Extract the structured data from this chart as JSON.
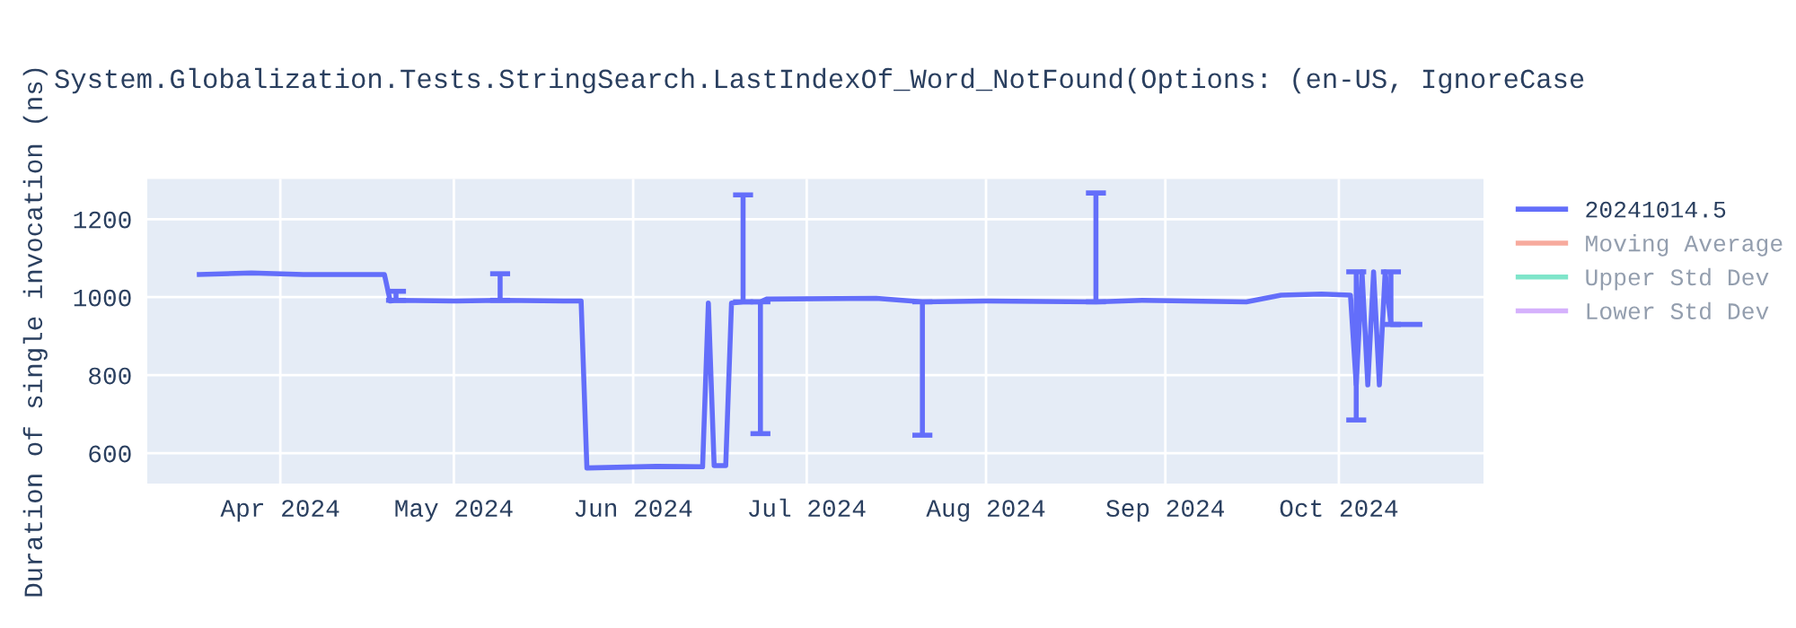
{
  "chart_data": {
    "type": "line",
    "title": "System.Globalization.Tests.StringSearch.LastIndexOf_Word_NotFound(Options: (en-US, IgnoreCase",
    "ylabel": "Duration of single invocation (ns)",
    "xlim": [
      "2024-03-09",
      "2024-10-26"
    ],
    "xticks": [
      {
        "value": "2024-04-01",
        "label": "Apr 2024"
      },
      {
        "value": "2024-05-01",
        "label": "May 2024"
      },
      {
        "value": "2024-06-01",
        "label": "Jun 2024"
      },
      {
        "value": "2024-07-01",
        "label": "Jul 2024"
      },
      {
        "value": "2024-08-01",
        "label": "Aug 2024"
      },
      {
        "value": "2024-09-01",
        "label": "Sep 2024"
      },
      {
        "value": "2024-10-01",
        "label": "Oct 2024"
      }
    ],
    "ylim": [
      522,
      1303
    ],
    "yticks": [
      600,
      800,
      1000,
      1200
    ],
    "grid": true,
    "legend": "top right",
    "series": [
      {
        "name": "20241014.5",
        "color": "#636efa",
        "x": [
          "2024-03-18",
          "2024-03-27",
          "2024-04-05",
          "2024-04-19",
          "2024-04-20",
          "2024-04-21",
          "2024-05-01",
          "2024-05-09",
          "2024-05-20",
          "2024-05-23",
          "2024-05-24",
          "2024-06-05",
          "2024-06-13",
          "2024-06-14",
          "2024-06-15",
          "2024-06-17",
          "2024-06-18",
          "2024-06-20",
          "2024-06-23",
          "2024-06-24",
          "2024-07-13",
          "2024-07-21",
          "2024-08-01",
          "2024-08-20",
          "2024-08-28",
          "2024-09-15",
          "2024-09-21",
          "2024-09-28",
          "2024-10-03",
          "2024-10-04",
          "2024-10-05",
          "2024-10-06",
          "2024-10-07",
          "2024-10-08",
          "2024-10-09",
          "2024-10-10",
          "2024-10-15"
        ],
        "values": [
          1058,
          1062,
          1058,
          1058,
          990,
          992,
          990,
          992,
          990,
          990,
          562,
          566,
          565,
          985,
          568,
          568,
          985,
          988,
          988,
          995,
          997,
          988,
          990,
          988,
          992,
          988,
          1005,
          1008,
          1005,
          775,
          1065,
          775,
          1065,
          775,
          1065,
          930,
          930
        ],
        "errors": [
          null,
          null,
          null,
          null,
          null,
          [
            992,
            1015
          ],
          null,
          [
            992,
            1060
          ],
          null,
          null,
          null,
          null,
          null,
          null,
          null,
          null,
          null,
          [
            988,
            1262
          ],
          [
            650,
            988
          ],
          null,
          null,
          [
            646,
            988
          ],
          null,
          [
            988,
            1267
          ],
          null,
          null,
          null,
          null,
          null,
          [
            685,
            1065
          ],
          null,
          null,
          null,
          null,
          null,
          [
            930,
            1065
          ],
          null
        ]
      },
      {
        "name": "Moving Average",
        "color": "#ef553b"
      },
      {
        "name": "Upper Std Dev",
        "color": "#00cc96"
      },
      {
        "name": "Lower Std Dev",
        "color": "#ab63fa"
      }
    ]
  }
}
